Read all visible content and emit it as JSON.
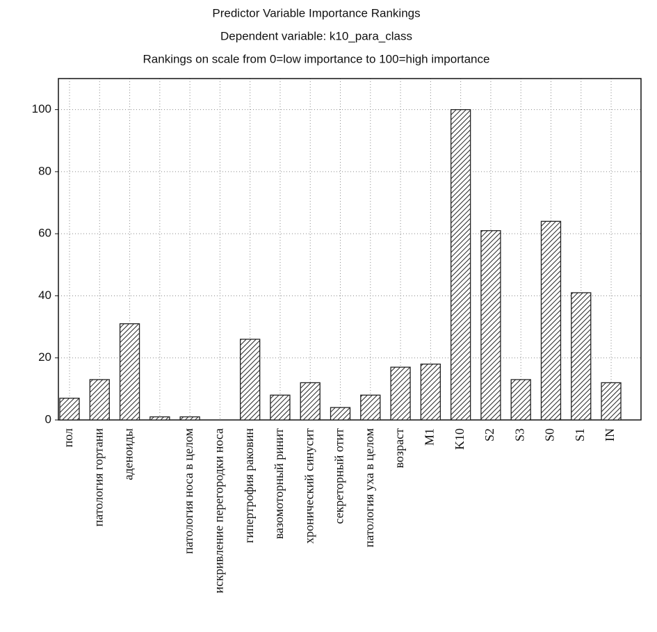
{
  "chart_data": {
    "type": "bar",
    "title": "Predictor Variable Importance Rankings",
    "subtitle": "Dependent variable: k10_para_class",
    "subtitle2": "Rankings on scale from 0=low importance to 100=high importance",
    "categories": [
      "пол",
      "патология  гортани",
      "аденоиды",
      null,
      "патология  носа  в  целом",
      "искривление  перегородки  носа",
      "гипертрофия  раковин",
      "вазомоторный  ринит",
      "хронический  синусит",
      "секреторный  отит",
      "патология  уха  в  целом",
      "возраст",
      "M1",
      "K10",
      "S2",
      "S3",
      "S0",
      "S1",
      "IN"
    ],
    "values": [
      7,
      13,
      31,
      1,
      1,
      0,
      26,
      8,
      12,
      4,
      8,
      17,
      18,
      100,
      61,
      13,
      64,
      41,
      12
    ],
    "color": "#222222",
    "ylim": [
      0,
      110
    ],
    "yticks": [
      0,
      20,
      40,
      60,
      80,
      100
    ],
    "grid": true
  }
}
